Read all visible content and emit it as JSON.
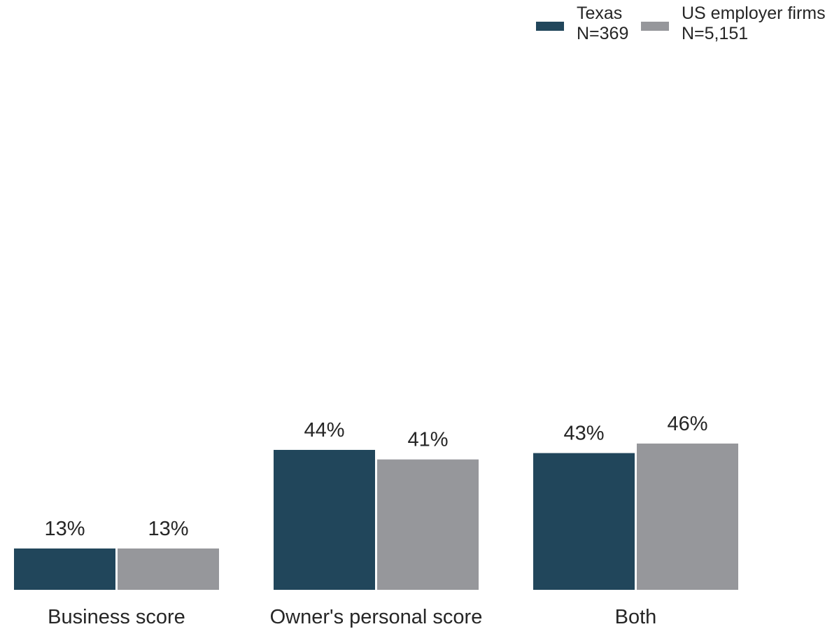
{
  "chart_data": {
    "type": "bar",
    "categories": [
      "Business score",
      "Owner's personal score",
      "Both"
    ],
    "series": [
      {
        "name": "Texas",
        "sample": "N=369",
        "color": "#21465b",
        "values": [
          13,
          44,
          43
        ],
        "labels": [
          "13%",
          "44%",
          "43%"
        ]
      },
      {
        "name": "US employer firms",
        "sample": "N=5,151",
        "color": "#96979b",
        "values": [
          13,
          41,
          46
        ],
        "labels": [
          "13%",
          "41%",
          "46%"
        ]
      }
    ],
    "unit": "%",
    "ylim": [
      0,
      46
    ],
    "grid": false,
    "legend_position": "top-right"
  }
}
